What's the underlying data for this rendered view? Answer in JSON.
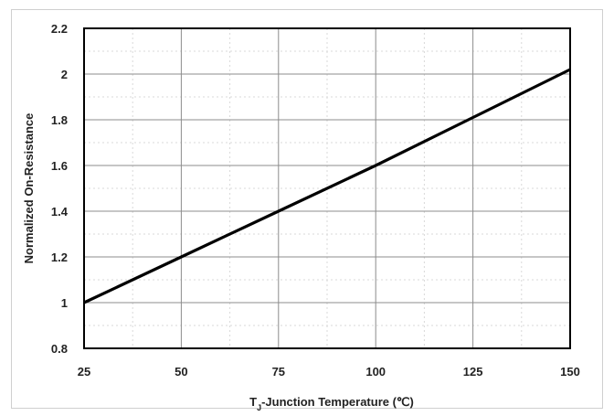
{
  "chart_data": {
    "type": "line",
    "title": "",
    "xlabel": "Tⱼ-Junction Temperature (℃)",
    "xlabel_main": "T",
    "xlabel_sub": "J",
    "xlabel_rest": "-Junction Temperature (℃)",
    "ylabel": "Normalized On-Resistance",
    "xlim": [
      25,
      150
    ],
    "ylim": [
      0.8,
      2.2
    ],
    "xticks": [
      "25",
      "50",
      "75",
      "100",
      "125",
      "150"
    ],
    "yticks": [
      "0.8",
      "1",
      "1.2",
      "1.4",
      "1.6",
      "1.8",
      "2",
      "2.2"
    ],
    "grid": true,
    "series": [
      {
        "x": [
          25,
          50,
          75,
          100,
          125,
          150
        ],
        "values": [
          1.0,
          1.2,
          1.4,
          1.6,
          1.81,
          2.02
        ],
        "color": "#000000"
      }
    ]
  }
}
